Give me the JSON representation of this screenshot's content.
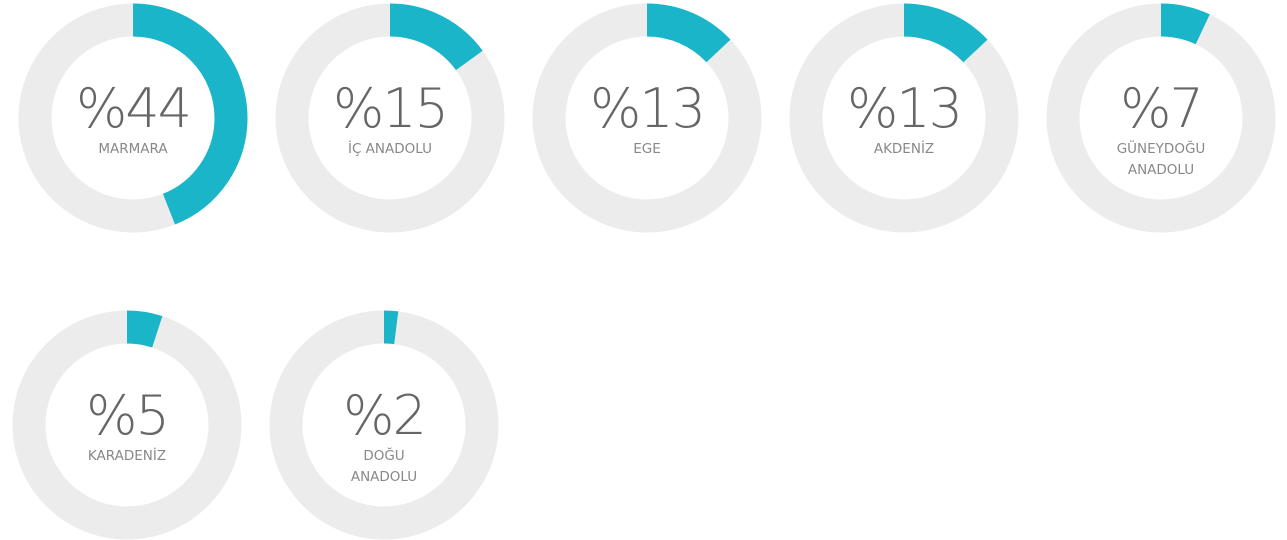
{
  "chart_data": {
    "type": "gauge",
    "categories": [
      "MARMARA",
      "İÇ ANADOLU",
      "EGE",
      "AKDENİZ",
      "GÜNEYDOĞU ANADOLU",
      "KARADENİZ",
      "DOĞU ANADOLU"
    ],
    "values": [
      44,
      15,
      13,
      13,
      7,
      5,
      2
    ],
    "value_labels": [
      "%44",
      "%15",
      "%13",
      "%13",
      "%7",
      "%5",
      "%2"
    ],
    "ylim": [
      0,
      100
    ],
    "color": "#1ab5c8",
    "track_color": "#ececec"
  }
}
